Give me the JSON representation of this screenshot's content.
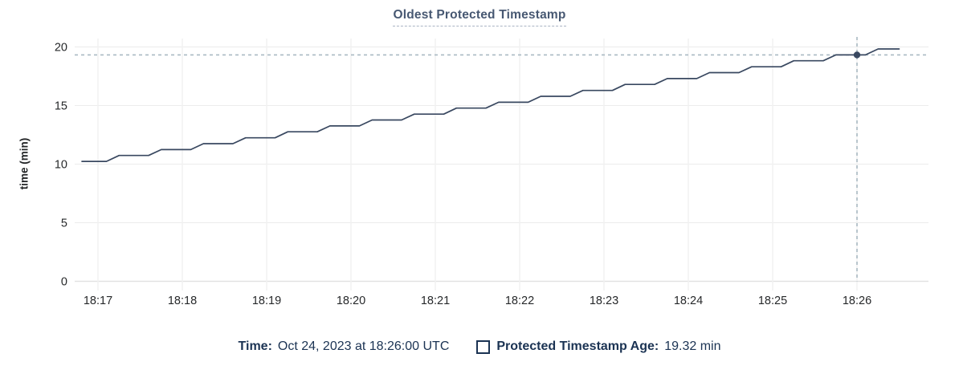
{
  "title": "Oldest Protected Timestamp",
  "chart_data": {
    "type": "line",
    "title": "Oldest Protected Timestamp",
    "xlabel": "",
    "ylabel": "time (min)",
    "ylim": [
      0,
      20
    ],
    "yticks": [
      0,
      5,
      10,
      15,
      20
    ],
    "x_axis": {
      "tick_labels": [
        "18:17",
        "18:18",
        "18:19",
        "18:20",
        "18:21",
        "18:22",
        "18:23",
        "18:24",
        "18:25",
        "18:26"
      ],
      "minutes_per_tick": 1
    },
    "grid": true,
    "series": [
      {
        "name": "Protected Timestamp Age",
        "color": "#394860",
        "points_note": "vertices as [minutes_after_18:17, age_min]",
        "points": [
          [
            -0.19,
            10.23
          ],
          [
            0.1,
            10.23
          ],
          [
            0.25,
            10.74
          ],
          [
            0.6,
            10.74
          ],
          [
            0.75,
            11.24
          ],
          [
            1.1,
            11.24
          ],
          [
            1.25,
            11.75
          ],
          [
            1.6,
            11.75
          ],
          [
            1.75,
            12.25
          ],
          [
            2.1,
            12.25
          ],
          [
            2.25,
            12.76
          ],
          [
            2.6,
            12.76
          ],
          [
            2.75,
            13.26
          ],
          [
            3.1,
            13.26
          ],
          [
            3.25,
            13.77
          ],
          [
            3.6,
            13.77
          ],
          [
            3.75,
            14.27
          ],
          [
            4.1,
            14.27
          ],
          [
            4.25,
            14.78
          ],
          [
            4.6,
            14.78
          ],
          [
            4.75,
            15.28
          ],
          [
            5.1,
            15.28
          ],
          [
            5.25,
            15.79
          ],
          [
            5.6,
            15.79
          ],
          [
            5.75,
            16.29
          ],
          [
            6.1,
            16.29
          ],
          [
            6.25,
            16.8
          ],
          [
            6.6,
            16.8
          ],
          [
            6.75,
            17.3
          ],
          [
            7.1,
            17.3
          ],
          [
            7.25,
            17.81
          ],
          [
            7.6,
            17.81
          ],
          [
            7.75,
            18.31
          ],
          [
            8.1,
            18.31
          ],
          [
            8.25,
            18.82
          ],
          [
            8.6,
            18.82
          ],
          [
            8.75,
            19.32
          ],
          [
            9.1,
            19.32
          ],
          [
            9.25,
            19.83
          ],
          [
            9.5,
            19.83
          ]
        ]
      }
    ],
    "crosshair": {
      "x_minutes": 9.0,
      "x_label": "18:26",
      "value": 19.32
    },
    "legend_position": "bottom"
  },
  "legend": {
    "time_label": "Time:",
    "time_value": "Oct 24, 2023 at 18:26:00 UTC",
    "series_label": "Protected Timestamp Age:",
    "series_value": "19.32 min"
  },
  "colors": {
    "title": "#475872",
    "series_line": "#394860",
    "legend_text": "#1b3353",
    "axis_text": "#26282a",
    "gridline": "#ececec",
    "axis_line": "#e2e2e2",
    "vertical_gridline": "#f1f1f1",
    "crosshair": "#a9b9c2",
    "background": "#ffffff"
  }
}
